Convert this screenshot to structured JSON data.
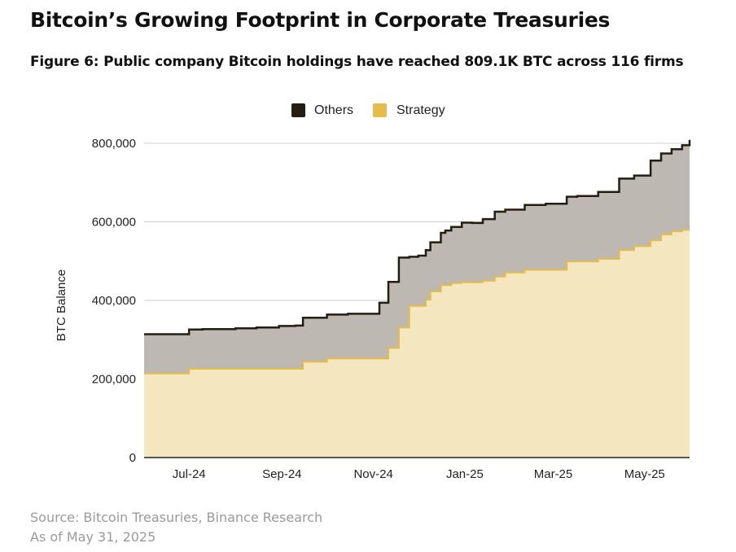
{
  "title": "Bitcoin’s Growing Footprint in Corporate Treasuries",
  "subtitle": "Figure 6: Public company Bitcoin holdings have reached 809.1K BTC across 116 firms",
  "footer": {
    "source": "Source: Bitcoin Treasuries, Binance Research",
    "as_of": "As of May 31, 2025"
  },
  "colors": {
    "others": "#231d12",
    "others_fill": "#bdb8b1",
    "strategy": "#e5bb4b",
    "strategy_fill": "#f4e6bf",
    "grid": "#cccccc"
  },
  "chart_data": {
    "type": "area",
    "stacked": true,
    "ylabel": "BTC Balance",
    "xlabel": "",
    "ylim": [
      0,
      800000
    ],
    "yticks": [
      0,
      200000,
      400000,
      600000,
      800000
    ],
    "ytick_labels": [
      "0",
      "200,000",
      "400,000",
      "600,000",
      "800,000"
    ],
    "xlim": [
      "2024-06-01",
      "2025-05-31"
    ],
    "xtick_labels": [
      "Jul-24",
      "Sep-24",
      "Nov-24",
      "Jan-25",
      "Mar-25",
      "May-25"
    ],
    "xtick_dates": [
      "2024-07-01",
      "2024-09-01",
      "2024-11-01",
      "2025-01-01",
      "2025-03-01",
      "2025-05-01"
    ],
    "legend": {
      "position": "top-center",
      "entries": [
        "Others",
        "Strategy"
      ]
    },
    "grid": true,
    "x": [
      "2024-06-01",
      "2024-06-20",
      "2024-07-01",
      "2024-07-10",
      "2024-08-01",
      "2024-08-15",
      "2024-08-30",
      "2024-09-10",
      "2024-09-15",
      "2024-09-20",
      "2024-10-01",
      "2024-10-15",
      "2024-11-01",
      "2024-11-05",
      "2024-11-11",
      "2024-11-14",
      "2024-11-18",
      "2024-11-25",
      "2024-12-01",
      "2024-12-06",
      "2024-12-09",
      "2024-12-13",
      "2024-12-16",
      "2024-12-19",
      "2024-12-23",
      "2024-12-30",
      "2025-01-06",
      "2025-01-13",
      "2025-01-21",
      "2025-01-28",
      "2025-02-10",
      "2025-02-24",
      "2025-03-10",
      "2025-03-17",
      "2025-03-24",
      "2025-03-31",
      "2025-04-14",
      "2025-04-21",
      "2025-04-24",
      "2025-04-28",
      "2025-05-05",
      "2025-05-12",
      "2025-05-19",
      "2025-05-26",
      "2025-05-31"
    ],
    "series": [
      {
        "name": "Strategy",
        "values": [
          214000,
          214000,
          226000,
          226000,
          226000,
          226000,
          226000,
          226000,
          244000,
          244000,
          252000,
          252000,
          252000,
          252000,
          279000,
          279000,
          331000,
          386000,
          386000,
          402000,
          423000,
          423000,
          439000,
          439000,
          444000,
          446000,
          446000,
          450000,
          461000,
          471000,
          478000,
          478000,
          499000,
          499000,
          499000,
          506000,
          528000,
          528000,
          538000,
          538000,
          553000,
          568000,
          576000,
          580000,
          580000
        ]
      },
      {
        "name": "Others",
        "values": [
          100000,
          100000,
          100000,
          101000,
          103000,
          105000,
          109000,
          110000,
          112000,
          112000,
          112000,
          114000,
          114000,
          142000,
          168000,
          168000,
          178000,
          125000,
          128000,
          126000,
          125000,
          125000,
          133000,
          139000,
          143000,
          152000,
          151000,
          157000,
          165000,
          160000,
          165000,
          168000,
          165000,
          167000,
          167000,
          170000,
          182000,
          182000,
          180000,
          180000,
          203000,
          206000,
          209000,
          215000,
          229000
        ]
      }
    ]
  }
}
